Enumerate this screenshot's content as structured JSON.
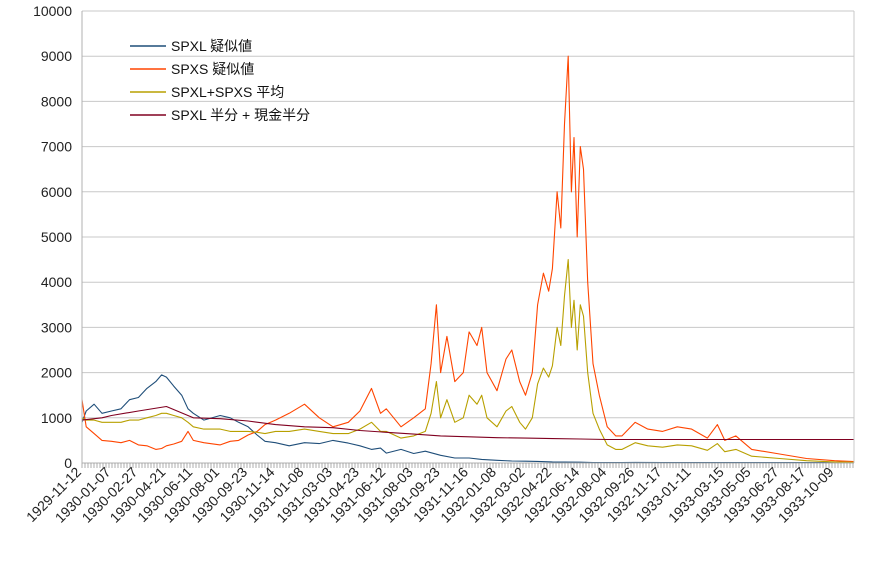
{
  "chart_data": {
    "type": "line",
    "title": "",
    "xlabel": "",
    "ylabel": "",
    "ylim": [
      0,
      10000
    ],
    "yticks": [
      0,
      1000,
      2000,
      3000,
      4000,
      5000,
      6000,
      7000,
      8000,
      9000,
      10000
    ],
    "grid": "horizontal",
    "legend_position": "top-left",
    "x_tick_labels": [
      "1929-11-12",
      "1930-01-07",
      "1930-02-27",
      "1930-04-21",
      "1930-06-11",
      "1930-08-01",
      "1930-09-23",
      "1930-11-14",
      "1931-01-08",
      "1931-03-03",
      "1931-04-23",
      "1931-06-12",
      "1931-08-03",
      "1931-09-23",
      "1931-11-16",
      "1932-01-08",
      "1932-03-02",
      "1932-04-22",
      "1932-06-14",
      "1932-08-04",
      "1932-09-26",
      "1932-11-17",
      "1933-01-11",
      "1933-03-15",
      "1933-05-05",
      "1933-06-27",
      "1933-08-17",
      "1933-10-09"
    ],
    "series": [
      {
        "name": "SPXL 疑似値",
        "color": "#1f4e79",
        "x": [
          "1929-11-12",
          "1929-11-20",
          "1929-12-05",
          "1929-12-20",
          "1930-01-07",
          "1930-01-25",
          "1930-02-10",
          "1930-02-27",
          "1930-03-15",
          "1930-04-01",
          "1930-04-12",
          "1930-04-21",
          "1930-05-05",
          "1930-05-20",
          "1930-06-01",
          "1930-06-11",
          "1930-07-01",
          "1930-08-01",
          "1930-08-20",
          "1930-09-05",
          "1930-09-23",
          "1930-10-10",
          "1930-10-25",
          "1930-11-14",
          "1930-12-10",
          "1931-01-08",
          "1931-02-05",
          "1931-03-03",
          "1931-04-01",
          "1931-04-23",
          "1931-05-15",
          "1931-06-01",
          "1931-06-12",
          "1931-07-10",
          "1931-08-03",
          "1931-08-25",
          "1931-09-23",
          "1931-10-20",
          "1931-11-16",
          "1931-12-10",
          "1932-01-08",
          "1932-02-05",
          "1932-03-02",
          "1932-03-25",
          "1932-04-22",
          "1932-05-15",
          "1932-06-14",
          "1932-07-08",
          "1932-08-04",
          "1932-09-01",
          "1932-09-26",
          "1932-11-17",
          "1933-01-11",
          "1933-03-15",
          "1933-05-05",
          "1933-06-27",
          "1933-08-17",
          "1933-10-09",
          "1933-11-15"
        ],
        "values": [
          900,
          1150,
          1300,
          1100,
          1150,
          1200,
          1400,
          1450,
          1650,
          1800,
          1950,
          1900,
          1700,
          1500,
          1200,
          1100,
          950,
          1050,
          1000,
          900,
          800,
          620,
          480,
          450,
          380,
          450,
          430,
          500,
          440,
          380,
          300,
          330,
          220,
          300,
          210,
          260,
          170,
          110,
          110,
          80,
          60,
          45,
          40,
          35,
          25,
          22,
          18,
          12,
          10,
          12,
          14,
          12,
          10,
          9,
          8,
          8,
          8,
          8,
          8
        ]
      },
      {
        "name": "SPXS 疑似値",
        "color": "#ff4500",
        "x": [
          "1929-11-12",
          "1929-11-20",
          "1929-12-05",
          "1929-12-20",
          "1930-01-07",
          "1930-01-25",
          "1930-02-10",
          "1930-02-27",
          "1930-03-15",
          "1930-04-01",
          "1930-04-12",
          "1930-04-21",
          "1930-05-05",
          "1930-05-20",
          "1930-06-01",
          "1930-06-11",
          "1930-07-01",
          "1930-08-01",
          "1930-08-20",
          "1930-09-05",
          "1930-09-23",
          "1930-10-10",
          "1930-10-25",
          "1930-11-14",
          "1930-12-10",
          "1931-01-08",
          "1931-02-05",
          "1931-03-03",
          "1931-04-01",
          "1931-04-23",
          "1931-05-15",
          "1931-06-01",
          "1931-06-12",
          "1931-07-10",
          "1931-08-03",
          "1931-08-25",
          "1931-09-05",
          "1931-09-15",
          "1931-09-23",
          "1931-10-05",
          "1931-10-20",
          "1931-11-05",
          "1931-11-16",
          "1931-12-01",
          "1931-12-10",
          "1931-12-20",
          "1932-01-08",
          "1932-01-25",
          "1932-02-05",
          "1932-02-20",
          "1932-03-02",
          "1932-03-15",
          "1932-03-25",
          "1932-04-05",
          "1932-04-15",
          "1932-04-22",
          "1932-05-01",
          "1932-05-08",
          "1932-05-15",
          "1932-05-22",
          "1932-05-28",
          "1932-06-02",
          "1932-06-08",
          "1932-06-14",
          "1932-06-20",
          "1932-06-28",
          "1932-07-08",
          "1932-07-20",
          "1932-08-04",
          "1932-08-20",
          "1932-09-01",
          "1932-09-26",
          "1932-10-20",
          "1932-11-17",
          "1932-12-15",
          "1933-01-11",
          "1933-02-10",
          "1933-03-01",
          "1933-03-15",
          "1933-04-05",
          "1933-05-05",
          "1933-06-27",
          "1933-08-17",
          "1933-10-09",
          "1933-11-15"
        ],
        "values": [
          1400,
          800,
          650,
          500,
          480,
          450,
          500,
          400,
          380,
          300,
          320,
          380,
          420,
          480,
          700,
          500,
          450,
          400,
          480,
          500,
          620,
          700,
          850,
          950,
          1100,
          1300,
          1000,
          800,
          900,
          1150,
          1650,
          1100,
          1200,
          800,
          1000,
          1200,
          2200,
          3500,
          2000,
          2800,
          1800,
          2000,
          2900,
          2600,
          3000,
          2000,
          1600,
          2300,
          2500,
          1800,
          1500,
          2000,
          3500,
          4200,
          3800,
          4300,
          6000,
          5200,
          7500,
          9000,
          6000,
          7200,
          5000,
          7000,
          6500,
          4000,
          2200,
          1500,
          800,
          600,
          600,
          900,
          750,
          700,
          800,
          750,
          550,
          850,
          500,
          600,
          300,
          200,
          100,
          50,
          30
        ]
      },
      {
        "name": "SPXL+SPXS 平均",
        "color": "#b8a000",
        "x": [
          "1929-11-12",
          "1929-11-20",
          "1929-12-05",
          "1929-12-20",
          "1930-01-07",
          "1930-01-25",
          "1930-02-10",
          "1930-02-27",
          "1930-03-15",
          "1930-04-01",
          "1930-04-12",
          "1930-04-21",
          "1930-05-05",
          "1930-05-20",
          "1930-06-01",
          "1930-06-11",
          "1930-07-01",
          "1930-08-01",
          "1930-08-20",
          "1930-09-05",
          "1930-09-23",
          "1930-10-10",
          "1930-10-25",
          "1930-11-14",
          "1930-12-10",
          "1931-01-08",
          "1931-02-05",
          "1931-03-03",
          "1931-04-01",
          "1931-04-23",
          "1931-05-15",
          "1931-06-01",
          "1931-06-12",
          "1931-07-10",
          "1931-08-03",
          "1931-08-25",
          "1931-09-05",
          "1931-09-15",
          "1931-09-23",
          "1931-10-05",
          "1931-10-20",
          "1931-11-05",
          "1931-11-16",
          "1931-12-01",
          "1931-12-10",
          "1931-12-20",
          "1932-01-08",
          "1932-01-25",
          "1932-02-05",
          "1932-02-20",
          "1932-03-02",
          "1932-03-15",
          "1932-03-25",
          "1932-04-05",
          "1932-04-15",
          "1932-04-22",
          "1932-05-01",
          "1932-05-08",
          "1932-05-15",
          "1932-05-22",
          "1932-05-28",
          "1932-06-02",
          "1932-06-08",
          "1932-06-14",
          "1932-06-20",
          "1932-06-28",
          "1932-07-08",
          "1932-07-20",
          "1932-08-04",
          "1932-08-20",
          "1932-09-01",
          "1932-09-26",
          "1932-10-20",
          "1932-11-17",
          "1932-12-15",
          "1933-01-11",
          "1933-02-10",
          "1933-03-01",
          "1933-03-15",
          "1933-04-05",
          "1933-05-05",
          "1933-06-27",
          "1933-08-17",
          "1933-10-09",
          "1933-11-15"
        ],
        "values": [
          1000,
          950,
          950,
          900,
          900,
          900,
          950,
          950,
          1000,
          1050,
          1100,
          1100,
          1050,
          1000,
          900,
          800,
          750,
          750,
          700,
          700,
          700,
          680,
          650,
          700,
          700,
          750,
          700,
          650,
          650,
          750,
          900,
          700,
          700,
          550,
          600,
          700,
          1100,
          1800,
          1000,
          1400,
          900,
          1000,
          1500,
          1300,
          1500,
          1000,
          800,
          1150,
          1250,
          900,
          750,
          1000,
          1750,
          2100,
          1900,
          2150,
          3000,
          2600,
          3700,
          4500,
          3000,
          3600,
          2500,
          3500,
          3250,
          2000,
          1100,
          750,
          400,
          300,
          300,
          450,
          380,
          350,
          400,
          380,
          280,
          430,
          250,
          300,
          150,
          100,
          50,
          25,
          15
        ]
      },
      {
        "name": "SPXL 半分 + 現金半分",
        "color": "#800020",
        "x": [
          "1929-11-12",
          "1929-12-20",
          "1930-01-07",
          "1930-02-27",
          "1930-04-21",
          "1930-06-11",
          "1930-08-01",
          "1930-09-23",
          "1930-11-14",
          "1931-01-08",
          "1931-03-03",
          "1931-04-23",
          "1931-06-12",
          "1931-08-03",
          "1931-09-23",
          "1931-11-16",
          "1932-01-08",
          "1932-03-02",
          "1932-04-22",
          "1932-06-14",
          "1932-08-04",
          "1932-09-26",
          "1932-11-17",
          "1933-01-11",
          "1933-03-15",
          "1933-05-05",
          "1933-06-27",
          "1933-08-17",
          "1933-10-09",
          "1933-11-15"
        ],
        "values": [
          950,
          1000,
          1050,
          1150,
          1250,
          1000,
          980,
          930,
          850,
          800,
          780,
          720,
          680,
          640,
          600,
          580,
          560,
          550,
          540,
          530,
          520,
          520,
          520,
          520,
          520,
          520,
          520,
          520,
          520,
          520
        ]
      }
    ]
  }
}
